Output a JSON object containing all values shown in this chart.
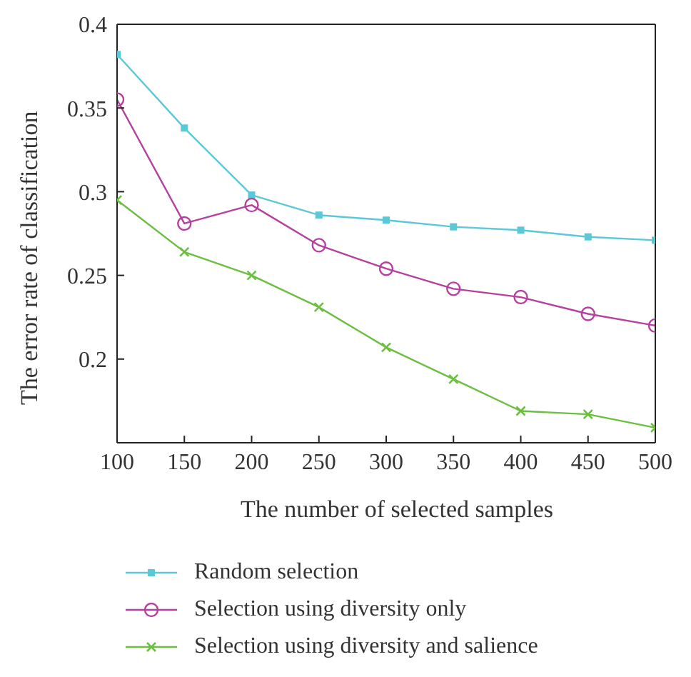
{
  "chart_data": {
    "type": "line",
    "xlabel": "The number of selected samples",
    "ylabel": "The error rate of classification",
    "x": [
      100,
      150,
      200,
      250,
      300,
      350,
      400,
      450,
      500
    ],
    "xlim": [
      100,
      500
    ],
    "xticks": [
      100,
      150,
      200,
      250,
      300,
      350,
      400,
      450,
      500
    ],
    "ylim": [
      0.15,
      0.4
    ],
    "yticks": [
      0.2,
      0.25,
      0.3,
      0.35,
      0.4
    ],
    "grid": false,
    "legend": "bottom",
    "line_style": "solid",
    "series": [
      {
        "name": "Random selection",
        "color": "#5bc8d8",
        "marker": "square",
        "values": [
          0.382,
          0.338,
          0.298,
          0.286,
          0.283,
          0.279,
          0.277,
          0.273,
          0.271
        ]
      },
      {
        "name": "Selection using diversity only",
        "color": "#b5409f",
        "marker": "circle",
        "values": [
          0.355,
          0.281,
          0.292,
          0.268,
          0.254,
          0.242,
          0.237,
          0.227,
          0.22
        ]
      },
      {
        "name": "Selection using diversity and salience",
        "color": "#6abf3f",
        "marker": "cross",
        "values": [
          0.295,
          0.264,
          0.25,
          0.231,
          0.207,
          0.188,
          0.169,
          0.167,
          0.159
        ]
      }
    ]
  }
}
